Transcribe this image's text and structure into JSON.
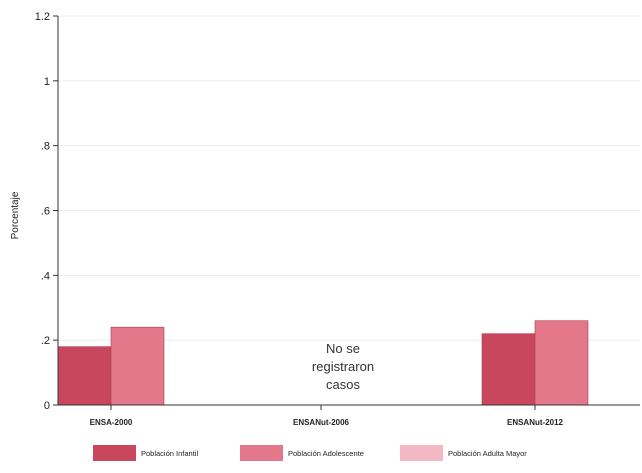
{
  "chart_data": {
    "type": "bar",
    "title": "",
    "xlabel": "",
    "ylabel": "Porcentaje",
    "ylim": [
      0,
      1.2
    ],
    "yticks": [
      "0",
      ".2",
      ".4",
      ".6",
      ".8",
      "1",
      "1.2"
    ],
    "ytick_values": [
      0,
      0.2,
      0.4,
      0.6,
      0.8,
      1.0,
      1.2
    ],
    "grid": true,
    "categories": [
      "ENSA-2000",
      "ENSANut-2006",
      "ENSANut-2012"
    ],
    "series": [
      {
        "name": "Población Infantil",
        "color": "#c9475c",
        "values": [
          0.18,
          null,
          0.22
        ]
      },
      {
        "name": "Población Adolescente",
        "color": "#e3788a",
        "values": [
          0.24,
          null,
          0.26
        ]
      },
      {
        "name": "Población Adulta Mayor",
        "color": "#f2b8c3",
        "values": [
          null,
          null,
          null
        ]
      }
    ],
    "annotation": {
      "category": "ENSANut-2006",
      "lines": [
        "No se",
        "registraron",
        "casos"
      ]
    },
    "legend_position": "bottom"
  }
}
